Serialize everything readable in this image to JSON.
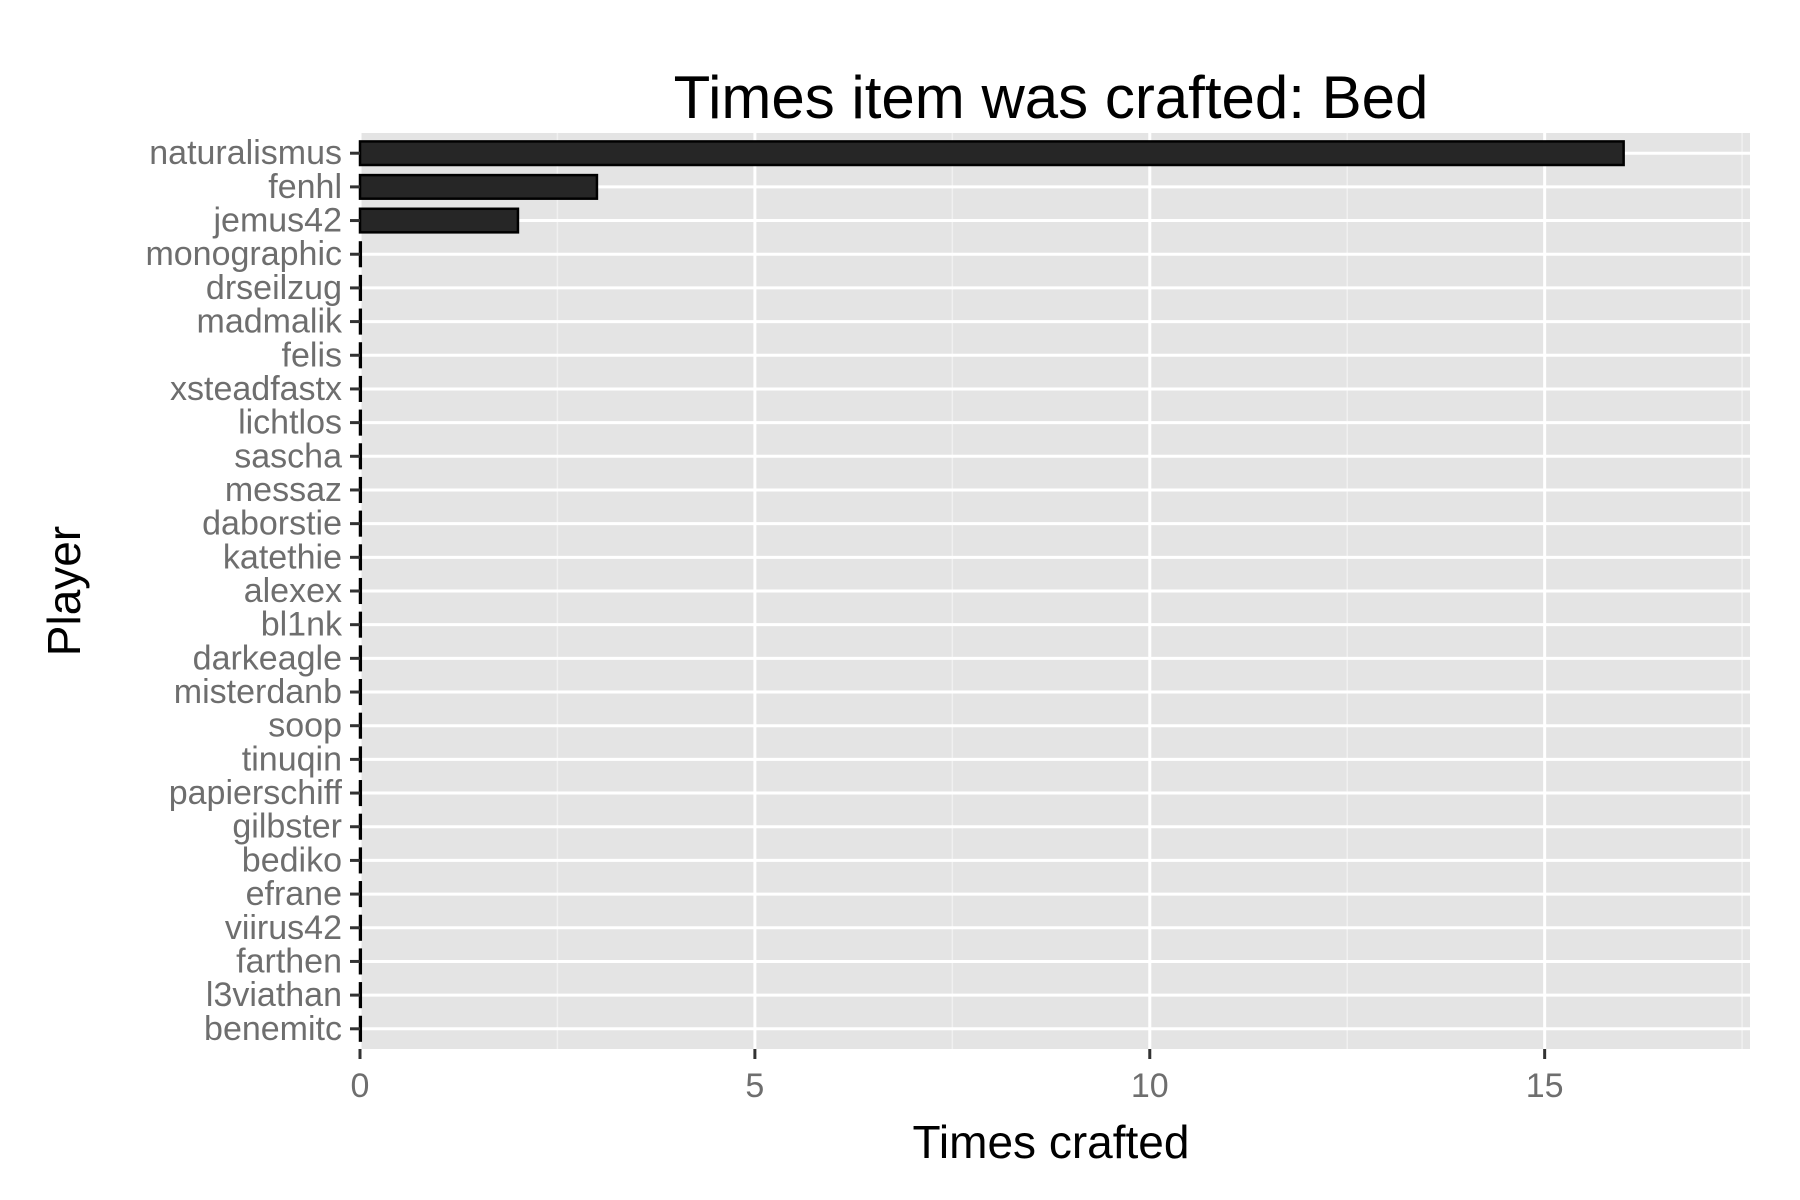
{
  "chart_data": {
    "type": "bar",
    "orientation": "horizontal",
    "title": "Times item was crafted: Bed",
    "xlabel": "Times crafted",
    "ylabel": "Player",
    "xlim": [
      0,
      17.6
    ],
    "xticks": [
      0,
      5,
      10,
      15
    ],
    "grid": true,
    "legend": "none",
    "bar_color": "#262626",
    "panel_color": "#e4e4e4",
    "categories": [
      "naturalismus",
      "fenhl",
      "jemus42",
      "monographic",
      "drseilzug",
      "madmalik",
      "felis",
      "xsteadfastx",
      "lichtlos",
      "sascha",
      "messaz",
      "daborstie",
      "katethie",
      "alexex",
      "bl1nk",
      "darkeagle",
      "misterdanb",
      "soop",
      "tinuqin",
      "papierschiff",
      "gilbster",
      "bediko",
      "efrane",
      "viirus42",
      "farthen",
      "l3viathan",
      "benemitc"
    ],
    "values": [
      16,
      3,
      2,
      0,
      0,
      0,
      0,
      0,
      0,
      0,
      0,
      0,
      0,
      0,
      0,
      0,
      0,
      0,
      0,
      0,
      0,
      0,
      0,
      0,
      0,
      0,
      0
    ]
  }
}
